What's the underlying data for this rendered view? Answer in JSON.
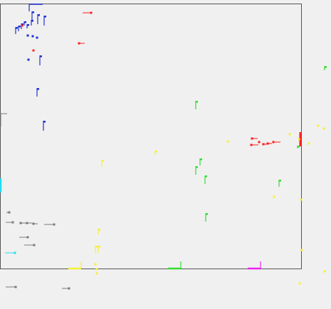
{
  "canvas": {
    "background": "#f0f0f0",
    "frame_color": "#555555"
  },
  "colors": {
    "blue": "#1f2fd6",
    "red": "#ff1e1e",
    "green": "#33dd33",
    "yellow": "#f4f03a",
    "gray": "#7a7a7a",
    "cyan": "#22ddee",
    "magenta": "#ee22ee"
  }
}
